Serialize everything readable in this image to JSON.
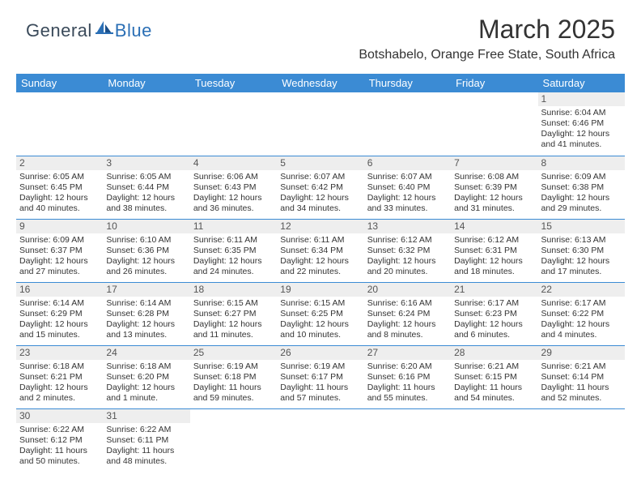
{
  "brand": {
    "part1": "General",
    "part2": "Blue"
  },
  "title": "March 2025",
  "location": "Botshabelo, Orange Free State, South Africa",
  "header_bg": "#3b8bd4",
  "daynames": [
    "Sunday",
    "Monday",
    "Tuesday",
    "Wednesday",
    "Thursday",
    "Friday",
    "Saturday"
  ],
  "weeks": [
    [
      null,
      null,
      null,
      null,
      null,
      null,
      {
        "d": "1",
        "sr": "6:04 AM",
        "ss": "6:46 PM",
        "dl": "12 hours and 41 minutes."
      }
    ],
    [
      {
        "d": "2",
        "sr": "6:05 AM",
        "ss": "6:45 PM",
        "dl": "12 hours and 40 minutes."
      },
      {
        "d": "3",
        "sr": "6:05 AM",
        "ss": "6:44 PM",
        "dl": "12 hours and 38 minutes."
      },
      {
        "d": "4",
        "sr": "6:06 AM",
        "ss": "6:43 PM",
        "dl": "12 hours and 36 minutes."
      },
      {
        "d": "5",
        "sr": "6:07 AM",
        "ss": "6:42 PM",
        "dl": "12 hours and 34 minutes."
      },
      {
        "d": "6",
        "sr": "6:07 AM",
        "ss": "6:40 PM",
        "dl": "12 hours and 33 minutes."
      },
      {
        "d": "7",
        "sr": "6:08 AM",
        "ss": "6:39 PM",
        "dl": "12 hours and 31 minutes."
      },
      {
        "d": "8",
        "sr": "6:09 AM",
        "ss": "6:38 PM",
        "dl": "12 hours and 29 minutes."
      }
    ],
    [
      {
        "d": "9",
        "sr": "6:09 AM",
        "ss": "6:37 PM",
        "dl": "12 hours and 27 minutes."
      },
      {
        "d": "10",
        "sr": "6:10 AM",
        "ss": "6:36 PM",
        "dl": "12 hours and 26 minutes."
      },
      {
        "d": "11",
        "sr": "6:11 AM",
        "ss": "6:35 PM",
        "dl": "12 hours and 24 minutes."
      },
      {
        "d": "12",
        "sr": "6:11 AM",
        "ss": "6:34 PM",
        "dl": "12 hours and 22 minutes."
      },
      {
        "d": "13",
        "sr": "6:12 AM",
        "ss": "6:32 PM",
        "dl": "12 hours and 20 minutes."
      },
      {
        "d": "14",
        "sr": "6:12 AM",
        "ss": "6:31 PM",
        "dl": "12 hours and 18 minutes."
      },
      {
        "d": "15",
        "sr": "6:13 AM",
        "ss": "6:30 PM",
        "dl": "12 hours and 17 minutes."
      }
    ],
    [
      {
        "d": "16",
        "sr": "6:14 AM",
        "ss": "6:29 PM",
        "dl": "12 hours and 15 minutes."
      },
      {
        "d": "17",
        "sr": "6:14 AM",
        "ss": "6:28 PM",
        "dl": "12 hours and 13 minutes."
      },
      {
        "d": "18",
        "sr": "6:15 AM",
        "ss": "6:27 PM",
        "dl": "12 hours and 11 minutes."
      },
      {
        "d": "19",
        "sr": "6:15 AM",
        "ss": "6:25 PM",
        "dl": "12 hours and 10 minutes."
      },
      {
        "d": "20",
        "sr": "6:16 AM",
        "ss": "6:24 PM",
        "dl": "12 hours and 8 minutes."
      },
      {
        "d": "21",
        "sr": "6:17 AM",
        "ss": "6:23 PM",
        "dl": "12 hours and 6 minutes."
      },
      {
        "d": "22",
        "sr": "6:17 AM",
        "ss": "6:22 PM",
        "dl": "12 hours and 4 minutes."
      }
    ],
    [
      {
        "d": "23",
        "sr": "6:18 AM",
        "ss": "6:21 PM",
        "dl": "12 hours and 2 minutes."
      },
      {
        "d": "24",
        "sr": "6:18 AM",
        "ss": "6:20 PM",
        "dl": "12 hours and 1 minute."
      },
      {
        "d": "25",
        "sr": "6:19 AM",
        "ss": "6:18 PM",
        "dl": "11 hours and 59 minutes."
      },
      {
        "d": "26",
        "sr": "6:19 AM",
        "ss": "6:17 PM",
        "dl": "11 hours and 57 minutes."
      },
      {
        "d": "27",
        "sr": "6:20 AM",
        "ss": "6:16 PM",
        "dl": "11 hours and 55 minutes."
      },
      {
        "d": "28",
        "sr": "6:21 AM",
        "ss": "6:15 PM",
        "dl": "11 hours and 54 minutes."
      },
      {
        "d": "29",
        "sr": "6:21 AM",
        "ss": "6:14 PM",
        "dl": "11 hours and 52 minutes."
      }
    ],
    [
      {
        "d": "30",
        "sr": "6:22 AM",
        "ss": "6:12 PM",
        "dl": "11 hours and 50 minutes."
      },
      {
        "d": "31",
        "sr": "6:22 AM",
        "ss": "6:11 PM",
        "dl": "11 hours and 48 minutes."
      },
      null,
      null,
      null,
      null,
      null
    ]
  ],
  "labels": {
    "sunrise": "Sunrise: ",
    "sunset": "Sunset: ",
    "daylight": "Daylight: "
  }
}
